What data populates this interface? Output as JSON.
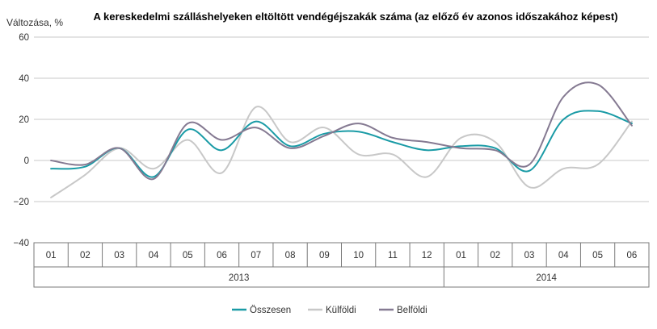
{
  "chart_data": {
    "type": "line",
    "title": "A kereskedelmi szálláshelyeken eltöltött vendégéjszakák száma (az előző év azonos időszakához képest)",
    "ylabel": "Változása, %",
    "ylim": [
      -40,
      60
    ],
    "yticks": [
      60,
      40,
      20,
      0,
      -20,
      -40
    ],
    "ytick_labels": [
      "60",
      "40",
      "20",
      "0",
      "−20",
      "−40"
    ],
    "grid": true,
    "legend_position": "bottom",
    "categories": [
      "01",
      "02",
      "03",
      "04",
      "05",
      "06",
      "07",
      "08",
      "09",
      "10",
      "11",
      "12",
      "01",
      "02",
      "03",
      "04",
      "05",
      "06"
    ],
    "years": [
      {
        "label": "2013",
        "span": 12
      },
      {
        "label": "2014",
        "span": 6
      }
    ],
    "series": [
      {
        "name": "Összesen",
        "color": "#1a9ba6",
        "values": [
          -4,
          -3,
          6,
          -8,
          15,
          5,
          19,
          7,
          13,
          14,
          9,
          5,
          7,
          6,
          -5,
          20,
          24,
          18
        ]
      },
      {
        "name": "Külföldi",
        "color": "#c8c8c8",
        "values": [
          -18,
          -7,
          6,
          -4,
          10,
          -6,
          26,
          9,
          16,
          3,
          3,
          -8,
          11,
          9,
          -13,
          -4,
          -2,
          19
        ]
      },
      {
        "name": "Belföldi",
        "color": "#857a92",
        "values": [
          0,
          -2,
          6,
          -9,
          18,
          10,
          16,
          6,
          12,
          18,
          11,
          9,
          6,
          5,
          -2,
          31,
          37,
          17
        ]
      }
    ]
  }
}
